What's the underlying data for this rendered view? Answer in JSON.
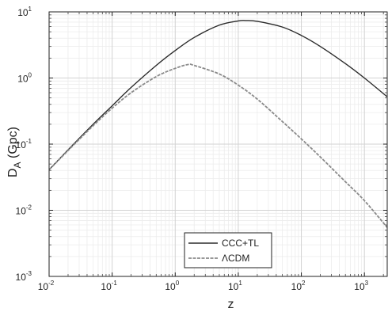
{
  "chart_data": {
    "type": "line",
    "title": "",
    "xlabel": "z",
    "ylabel": {
      "main": "D",
      "subscript": "A",
      "unit": " (Gpc)"
    },
    "x_scale": "log",
    "y_scale": "log",
    "xlim": [
      0.01,
      2300
    ],
    "ylim": [
      0.001,
      10
    ],
    "grid": true,
    "legend_position": "bottom-center",
    "x_ticks": [
      {
        "base": "10",
        "exp": "-2",
        "value": 0.01
      },
      {
        "base": "10",
        "exp": "-1",
        "value": 0.1
      },
      {
        "base": "10",
        "exp": "0",
        "value": 1
      },
      {
        "base": "10",
        "exp": "1",
        "value": 10
      },
      {
        "base": "10",
        "exp": "2",
        "value": 100
      },
      {
        "base": "10",
        "exp": "3",
        "value": 1000
      }
    ],
    "y_ticks": [
      {
        "base": "10",
        "exp": "-3",
        "value": 0.001
      },
      {
        "base": "10",
        "exp": "-2",
        "value": 0.01
      },
      {
        "base": "10",
        "exp": "-1",
        "value": 0.1
      },
      {
        "base": "10",
        "exp": "0",
        "value": 1
      },
      {
        "base": "10",
        "exp": "1",
        "value": 10
      }
    ],
    "series": [
      {
        "name": "CCC+TL",
        "color": "#2b2b2b",
        "style": "solid",
        "points": [
          [
            0.01,
            0.041
          ],
          [
            0.02,
            0.082
          ],
          [
            0.05,
            0.2
          ],
          [
            0.1,
            0.38
          ],
          [
            0.2,
            0.72
          ],
          [
            0.5,
            1.55
          ],
          [
            1,
            2.6
          ],
          [
            2,
            4.1
          ],
          [
            5,
            6.3
          ],
          [
            10,
            7.3
          ],
          [
            13,
            7.4
          ],
          [
            20,
            7.2
          ],
          [
            50,
            5.9
          ],
          [
            100,
            4.4
          ],
          [
            200,
            3.0
          ],
          [
            500,
            1.65
          ],
          [
            1000,
            1.0
          ],
          [
            2300,
            0.52
          ]
        ]
      },
      {
        "name": "ΛCDM",
        "color": "#8a8a8a",
        "style": "dashed",
        "points": [
          [
            0.01,
            0.041
          ],
          [
            0.02,
            0.08
          ],
          [
            0.05,
            0.19
          ],
          [
            0.1,
            0.35
          ],
          [
            0.2,
            0.6
          ],
          [
            0.5,
            1.05
          ],
          [
            1,
            1.4
          ],
          [
            1.6,
            1.6
          ],
          [
            2,
            1.55
          ],
          [
            5,
            1.15
          ],
          [
            10,
            0.78
          ],
          [
            20,
            0.48
          ],
          [
            50,
            0.22
          ],
          [
            100,
            0.12
          ],
          [
            200,
            0.064
          ],
          [
            500,
            0.027
          ],
          [
            1000,
            0.014
          ],
          [
            2300,
            0.0055
          ]
        ]
      }
    ]
  }
}
